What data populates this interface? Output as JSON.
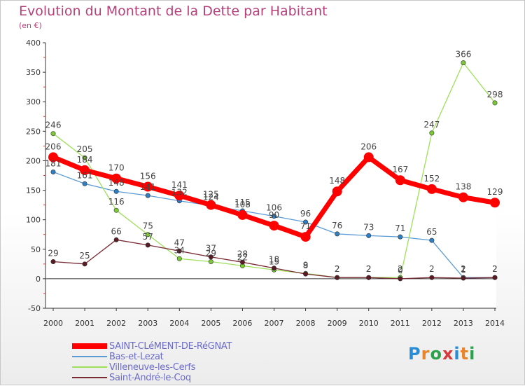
{
  "header": {
    "title": "Evolution du Montant de la Dette par Habitant",
    "subtitle": "(en €)"
  },
  "logo": {
    "text": "Proxiti",
    "letter_colors": [
      "#2a8bd6",
      "#e8852a",
      "#2aa14a",
      "#d63a3a",
      "#2a8bd6",
      "#e8852a",
      "#2aa14a"
    ]
  },
  "chart_data": {
    "type": "line",
    "title": "Evolution du Montant de la Dette par Habitant",
    "ylabel": "(en €)",
    "xlabel": "",
    "ylim": [
      -50,
      400
    ],
    "yticks": [
      -50,
      0,
      50,
      100,
      150,
      200,
      250,
      300,
      350,
      400
    ],
    "grid": false,
    "legend_position": "bottom-left",
    "x": [
      "2000",
      "2001",
      "2002",
      "2003",
      "2004",
      "2005",
      "2006",
      "2007",
      "2008",
      "2009",
      "2010",
      "2011",
      "2012",
      "2013",
      "2014"
    ],
    "series": [
      {
        "name": "Bas-et-Lezat",
        "color": "#5b9bd5",
        "marker_color": "#2f7fc4",
        "values": [
          181,
          161,
          148,
          141,
          132,
          124,
          115,
          106,
          96,
          76,
          73,
          71,
          65,
          2,
          2
        ],
        "labels": [
          "181",
          "161",
          "148",
          "141",
          "132",
          "124",
          "115",
          "106",
          "96",
          "76",
          "73",
          "71",
          "65",
          "2",
          "2"
        ]
      },
      {
        "name": "Villeneuve-les-Cerfs",
        "color": "#9ee05a",
        "marker_color": "#7bc935",
        "values": [
          246,
          205,
          116,
          75,
          34,
          29,
          22,
          15,
          9,
          2,
          2,
          2,
          247,
          366,
          298
        ],
        "labels": [
          "246",
          "205",
          "116",
          "75",
          "34",
          "29",
          "22",
          "15",
          "9",
          "2",
          "2",
          "2",
          "247",
          "366",
          "298"
        ]
      },
      {
        "name": "Saint-André-le-Coq",
        "color": "#7a2a35",
        "marker_color": "#5a1a24",
        "values": [
          29,
          25,
          66,
          57,
          47,
          37,
          28,
          18,
          8,
          2,
          2,
          0,
          2,
          1,
          2
        ],
        "labels": [
          "29",
          "25",
          "66",
          "57",
          "47",
          "37",
          "28",
          "18",
          "8",
          "2",
          "2",
          "0",
          "2",
          "1",
          "2"
        ]
      },
      {
        "name": "SAINT-CLéMENT-DE-RéGNAT",
        "color": "#ff0000",
        "marker_color": "#ff0000",
        "values": [
          206,
          184,
          170,
          156,
          141,
          125,
          108,
          90,
          71,
          148,
          206,
          167,
          152,
          138,
          129
        ],
        "labels": [
          "206",
          "184",
          "170",
          "156",
          "141",
          "125",
          "108",
          "90",
          "71",
          "148",
          "206",
          "167",
          "152",
          "138",
          "129"
        ]
      }
    ]
  },
  "legend": {
    "items": [
      {
        "label": "SAINT-CLéMENT-DE-RéGNAT",
        "color": "#ff0000"
      },
      {
        "label": "Bas-et-Lezat",
        "color": "#5b9bd5"
      },
      {
        "label": "Villeneuve-les-Cerfs",
        "color": "#9ee05a"
      },
      {
        "label": "Saint-André-le-Coq",
        "color": "#7a2a35"
      }
    ]
  }
}
